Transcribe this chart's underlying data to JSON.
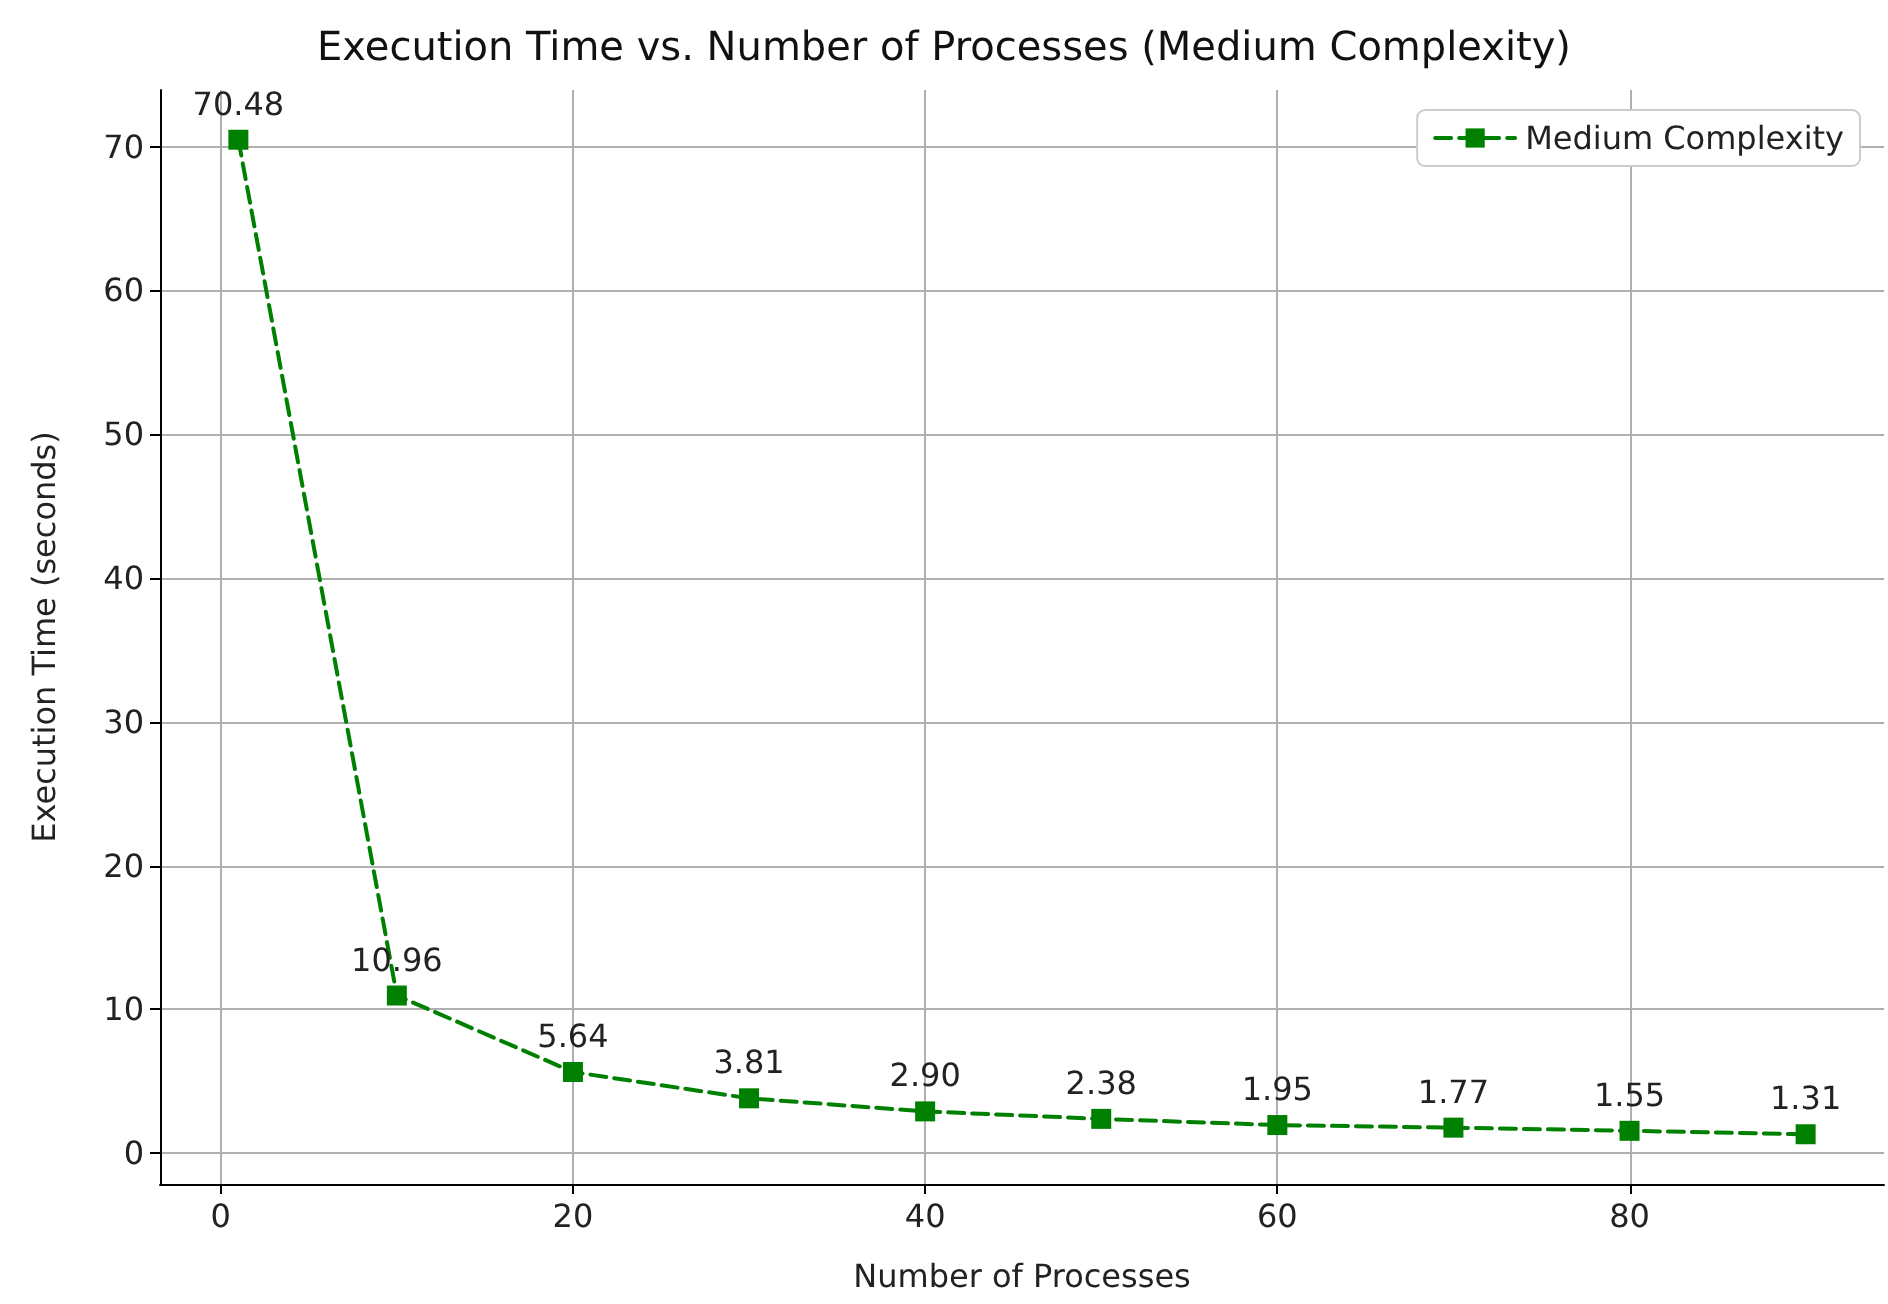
{
  "chart_data": {
    "type": "line",
    "title": "Execution Time vs. Number of Processes (Medium Complexity)",
    "xlabel": "Number of Processes",
    "ylabel": "Execution Time (seconds)",
    "x": [
      1,
      10,
      20,
      30,
      40,
      50,
      60,
      70,
      80,
      90
    ],
    "series": [
      {
        "name": "Medium Complexity",
        "color": "#008000",
        "values": [
          70.48,
          10.96,
          5.64,
          3.81,
          2.9,
          2.38,
          1.95,
          1.77,
          1.55,
          1.31
        ],
        "value_labels": [
          "70.48",
          "10.96",
          "5.64",
          "3.81",
          "2.90",
          "2.38",
          "1.95",
          "1.77",
          "1.55",
          "1.31"
        ]
      }
    ],
    "xlim": [
      -3.45,
      94.45
    ],
    "xticks": [
      0,
      20,
      40,
      60,
      80
    ],
    "ylim": [
      -2.15,
      73.94
    ],
    "yticks": [
      0,
      10,
      20,
      30,
      40,
      50,
      60,
      70
    ],
    "grid": true,
    "legend": "top right",
    "marker": "square",
    "line_style": "dashed"
  }
}
